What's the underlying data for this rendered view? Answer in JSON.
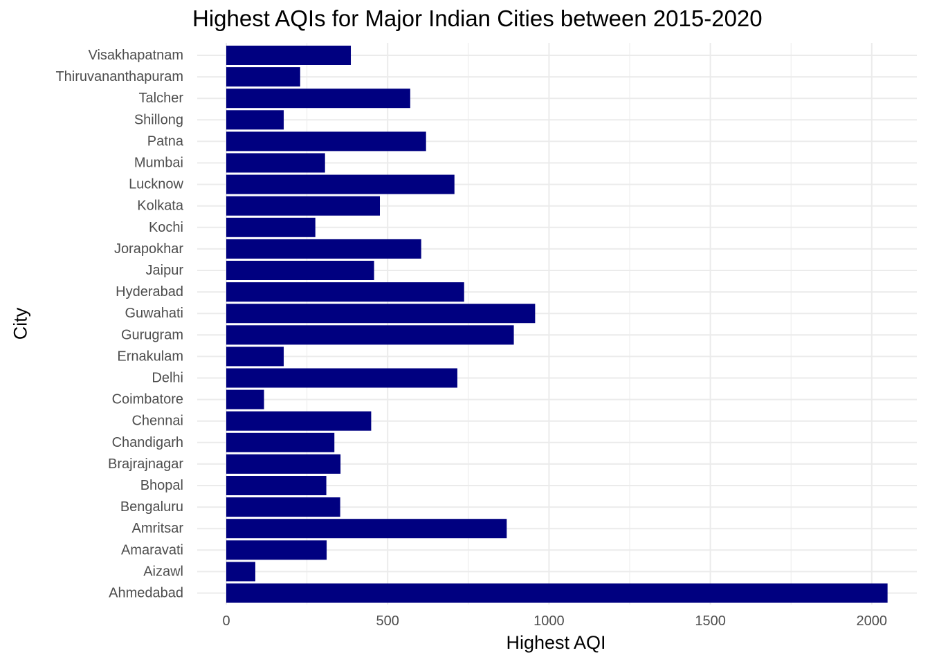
{
  "chart_data": {
    "type": "bar",
    "orientation": "horizontal",
    "title": "Highest AQIs for Major Indian Cities between 2015-2020",
    "xlabel": "Highest AQI",
    "ylabel": "City",
    "xlim": [
      0,
      2100
    ],
    "x_ticks": [
      0,
      500,
      1000,
      1500,
      2000
    ],
    "grid": true,
    "bar_color": "#000080",
    "categories": [
      "Ahmedabad",
      "Aizawl",
      "Amaravati",
      "Amritsar",
      "Bengaluru",
      "Bhopal",
      "Brajrajnagar",
      "Chandigarh",
      "Chennai",
      "Coimbatore",
      "Delhi",
      "Ernakulam",
      "Gurugram",
      "Guwahati",
      "Hyderabad",
      "Jaipur",
      "Jorapokhar",
      "Kochi",
      "Kolkata",
      "Lucknow",
      "Mumbai",
      "Patna",
      "Shillong",
      "Talcher",
      "Thiruvananthapuram",
      "Visakhapatnam"
    ],
    "values": [
      2049,
      90,
      311,
      869,
      353,
      310,
      354,
      335,
      449,
      117,
      716,
      178,
      891,
      957,
      737,
      458,
      604,
      276,
      476,
      707,
      306,
      619,
      178,
      570,
      229,
      386
    ]
  }
}
